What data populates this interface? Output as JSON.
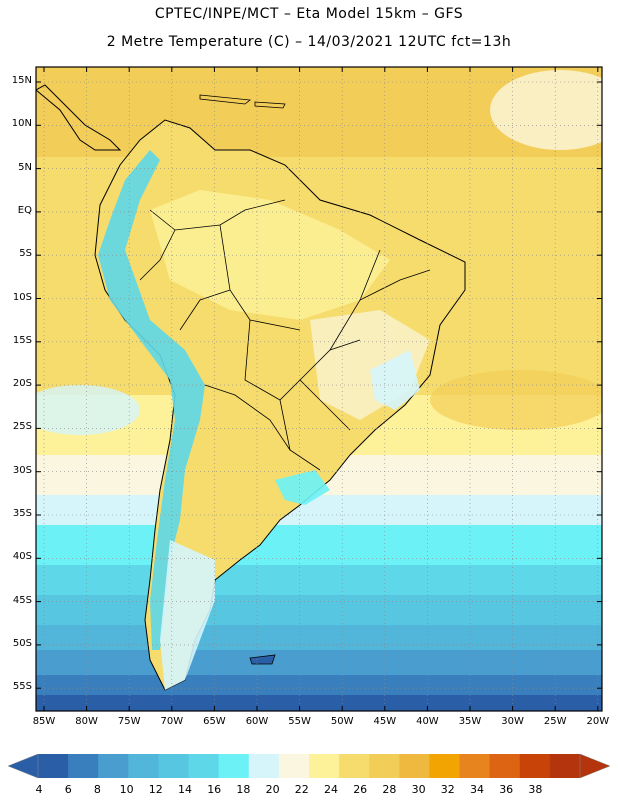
{
  "header": {
    "line1": "CPTEC/INPE/MCT –  Eta Model 15km – GFS",
    "line2": "2 Metre Temperature (C) – 14/03/2021 12UTC fct=13h"
  },
  "map": {
    "lat_labels": [
      "15N",
      "10N",
      "5N",
      "EQ",
      "5S",
      "10S",
      "15S",
      "20S",
      "25S",
      "30S",
      "35S",
      "40S",
      "45S",
      "50S",
      "55S"
    ],
    "lon_labels": [
      "85W",
      "80W",
      "75W",
      "70W",
      "65W",
      "60W",
      "55W",
      "50W",
      "45W",
      "40W",
      "35W",
      "30W",
      "25W",
      "20W"
    ]
  },
  "colorbar": {
    "ticks": [
      "4",
      "6",
      "8",
      "10",
      "12",
      "14",
      "16",
      "18",
      "20",
      "22",
      "24",
      "26",
      "28",
      "30",
      "32",
      "34",
      "36",
      "38"
    ],
    "colors": [
      "#2a5fa8",
      "#3a7fbd",
      "#4a9ecf",
      "#52b5da",
      "#57c6e0",
      "#5ed7e8",
      "#6cf2f6",
      "#d5f5fb",
      "#fbf6df",
      "#fdf29a",
      "#f6dc6d",
      "#f2cd57",
      "#efb93f",
      "#f2a502",
      "#e8841d",
      "#dd6412",
      "#c84308",
      "#b3340d"
    ]
  }
}
